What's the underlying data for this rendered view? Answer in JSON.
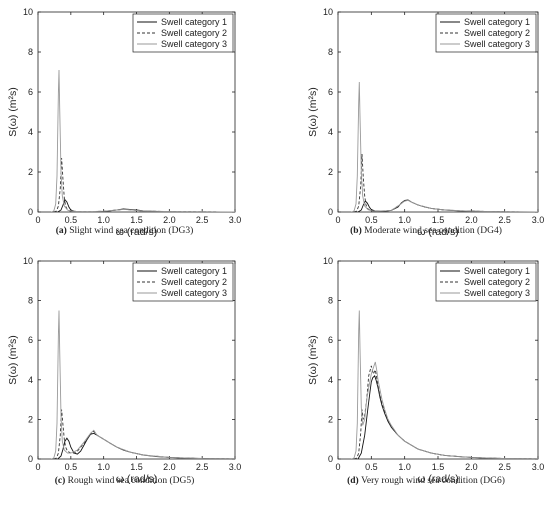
{
  "chart_data": [
    {
      "type": "line",
      "panel_letter": "(a)",
      "caption": "Slight wind sea condition (DG3)",
      "xlabel": "ω (rad/s)",
      "ylabel": "S(ω) (m²s)",
      "xlim": [
        0,
        3.0
      ],
      "ylim": [
        0,
        10
      ],
      "xticks": [
        "0",
        "0.5",
        "1.0",
        "1.5",
        "2.0",
        "2.5",
        "3.0"
      ],
      "yticks": [
        "0",
        "2",
        "4",
        "6",
        "8",
        "10"
      ],
      "grid": false,
      "legend_position": "top-right",
      "series": [
        {
          "name": "Swell category 1",
          "style": "solid",
          "color": "#111111",
          "x": [
            0.3,
            0.35,
            0.38,
            0.41,
            0.44,
            0.47,
            0.5,
            0.55,
            0.6,
            0.7,
            0.8,
            0.9,
            1.0,
            1.1,
            1.2,
            1.3,
            1.4,
            1.5,
            1.6,
            1.8,
            2.0,
            2.2,
            2.5,
            2.8,
            3.0
          ],
          "y": [
            0,
            0.1,
            0.35,
            0.62,
            0.5,
            0.25,
            0.1,
            0.04,
            0.02,
            0.01,
            0.01,
            0.02,
            0.03,
            0.06,
            0.1,
            0.15,
            0.13,
            0.1,
            0.06,
            0.03,
            0.02,
            0.01,
            0.01,
            0,
            0
          ]
        },
        {
          "name": "Swell category 2",
          "style": "dashed",
          "color": "#333333",
          "x": [
            0.24,
            0.28,
            0.31,
            0.34,
            0.36,
            0.38,
            0.4,
            0.42,
            0.45,
            0.5,
            0.6,
            0.8,
            1.0,
            1.2,
            1.3,
            1.4,
            1.6,
            2.0,
            2.5,
            3.0
          ],
          "y": [
            0,
            0.05,
            0.3,
            1.2,
            2.7,
            1.6,
            0.7,
            0.3,
            0.1,
            0.04,
            0.02,
            0.02,
            0.04,
            0.1,
            0.13,
            0.11,
            0.05,
            0.02,
            0.01,
            0
          ]
        },
        {
          "name": "Swell category 3",
          "style": "solid",
          "color": "#9a9a9a",
          "x": [
            0.2,
            0.24,
            0.27,
            0.29,
            0.31,
            0.32,
            0.33,
            0.35,
            0.37,
            0.4,
            0.45,
            0.5,
            0.6,
            0.8,
            1.0,
            1.2,
            1.3,
            1.4,
            1.6,
            2.0,
            2.5,
            3.0
          ],
          "y": [
            0,
            0.05,
            0.4,
            1.8,
            6.0,
            7.1,
            5.2,
            2.0,
            0.8,
            0.3,
            0.1,
            0.05,
            0.02,
            0.02,
            0.04,
            0.1,
            0.13,
            0.11,
            0.05,
            0.02,
            0.01,
            0
          ]
        }
      ]
    },
    {
      "type": "line",
      "panel_letter": "(b)",
      "caption": "Moderate wind sea condition (DG4)",
      "xlabel": "ω (rad/s)",
      "ylabel": "S(ω) (m²s)",
      "xlim": [
        0,
        3.0
      ],
      "ylim": [
        0,
        10
      ],
      "xticks": [
        "0",
        "0.5",
        "1.0",
        "1.5",
        "2.0",
        "2.5",
        "3.0"
      ],
      "yticks": [
        "0",
        "2",
        "4",
        "6",
        "8",
        "10"
      ],
      "grid": false,
      "legend_position": "top-right",
      "series": [
        {
          "name": "Swell category 1",
          "style": "solid",
          "color": "#111111",
          "x": [
            0.3,
            0.35,
            0.38,
            0.41,
            0.44,
            0.47,
            0.5,
            0.55,
            0.6,
            0.7,
            0.8,
            0.9,
            0.95,
            1.0,
            1.05,
            1.1,
            1.2,
            1.3,
            1.4,
            1.6,
            1.8,
            2.0,
            2.3,
            2.6,
            3.0
          ],
          "y": [
            0,
            0.1,
            0.35,
            0.55,
            0.45,
            0.25,
            0.12,
            0.06,
            0.04,
            0.04,
            0.08,
            0.25,
            0.45,
            0.58,
            0.6,
            0.5,
            0.35,
            0.25,
            0.18,
            0.1,
            0.06,
            0.04,
            0.02,
            0.01,
            0
          ]
        },
        {
          "name": "Swell category 2",
          "style": "dashed",
          "color": "#333333",
          "x": [
            0.24,
            0.28,
            0.31,
            0.34,
            0.36,
            0.38,
            0.4,
            0.42,
            0.45,
            0.5,
            0.6,
            0.8,
            0.9,
            1.0,
            1.05,
            1.1,
            1.2,
            1.4,
            1.6,
            2.0,
            2.5,
            3.0
          ],
          "y": [
            0,
            0.05,
            0.3,
            1.3,
            2.9,
            1.7,
            0.8,
            0.35,
            0.15,
            0.07,
            0.04,
            0.08,
            0.3,
            0.55,
            0.6,
            0.5,
            0.35,
            0.18,
            0.1,
            0.04,
            0.01,
            0
          ]
        },
        {
          "name": "Swell category 3",
          "style": "solid",
          "color": "#9a9a9a",
          "x": [
            0.2,
            0.24,
            0.27,
            0.29,
            0.31,
            0.32,
            0.33,
            0.35,
            0.37,
            0.4,
            0.45,
            0.5,
            0.6,
            0.8,
            0.9,
            1.0,
            1.05,
            1.1,
            1.2,
            1.4,
            1.6,
            2.0,
            2.5,
            3.0
          ],
          "y": [
            0,
            0.05,
            0.4,
            1.8,
            5.5,
            6.5,
            4.8,
            2.0,
            0.8,
            0.3,
            0.12,
            0.06,
            0.04,
            0.08,
            0.3,
            0.55,
            0.58,
            0.5,
            0.35,
            0.18,
            0.1,
            0.04,
            0.01,
            0
          ]
        }
      ]
    },
    {
      "type": "line",
      "panel_letter": "(c)",
      "caption": "Rough wind sea condition (DG5)",
      "xlabel": "ω (rad/s)",
      "ylabel": "S(ω) (m²s)",
      "xlim": [
        0,
        3.0
      ],
      "ylim": [
        0,
        10
      ],
      "xticks": [
        "0",
        "0.5",
        "1.0",
        "1.5",
        "2.0",
        "2.5",
        "3.0"
      ],
      "yticks": [
        "0",
        "2",
        "4",
        "6",
        "8",
        "10"
      ],
      "grid": false,
      "legend_position": "top-right",
      "series": [
        {
          "name": "Swell category 1",
          "style": "solid",
          "color": "#111111",
          "x": [
            0.3,
            0.35,
            0.38,
            0.41,
            0.44,
            0.47,
            0.5,
            0.55,
            0.6,
            0.65,
            0.7,
            0.75,
            0.8,
            0.85,
            0.9,
            0.95,
            1.0,
            1.1,
            1.2,
            1.3,
            1.4,
            1.6,
            1.8,
            2.0,
            2.3,
            2.6,
            3.0
          ],
          "y": [
            0,
            0.15,
            0.5,
            0.9,
            1.05,
            0.9,
            0.6,
            0.3,
            0.25,
            0.4,
            0.7,
            1.0,
            1.25,
            1.3,
            1.2,
            1.1,
            1.0,
            0.8,
            0.6,
            0.45,
            0.35,
            0.2,
            0.12,
            0.08,
            0.04,
            0.02,
            0.01
          ]
        },
        {
          "name": "Swell category 2",
          "style": "dashed",
          "color": "#333333",
          "x": [
            0.24,
            0.28,
            0.31,
            0.34,
            0.36,
            0.38,
            0.4,
            0.42,
            0.45,
            0.5,
            0.55,
            0.6,
            0.7,
            0.8,
            0.85,
            0.9,
            1.0,
            1.1,
            1.2,
            1.4,
            1.6,
            2.0,
            2.5,
            3.0
          ],
          "y": [
            0,
            0.05,
            0.3,
            1.2,
            2.5,
            1.7,
            1.0,
            0.6,
            0.4,
            0.3,
            0.3,
            0.4,
            0.8,
            1.25,
            1.4,
            1.2,
            1.0,
            0.8,
            0.6,
            0.35,
            0.2,
            0.08,
            0.02,
            0.01
          ]
        },
        {
          "name": "Swell category 3",
          "style": "solid",
          "color": "#9a9a9a",
          "x": [
            0.2,
            0.24,
            0.27,
            0.29,
            0.31,
            0.32,
            0.33,
            0.35,
            0.37,
            0.4,
            0.45,
            0.5,
            0.6,
            0.7,
            0.8,
            0.85,
            0.9,
            1.0,
            1.1,
            1.2,
            1.4,
            1.6,
            2.0,
            2.5,
            3.0
          ],
          "y": [
            0,
            0.05,
            0.4,
            1.8,
            6.3,
            7.5,
            5.5,
            2.2,
            0.9,
            0.45,
            0.3,
            0.3,
            0.45,
            0.85,
            1.3,
            1.45,
            1.2,
            1.0,
            0.8,
            0.6,
            0.35,
            0.2,
            0.08,
            0.02,
            0.01
          ]
        }
      ]
    },
    {
      "type": "line",
      "panel_letter": "(d)",
      "caption": "Very rough wind sea condition (DG6)",
      "xlabel": "ω (rad/s)",
      "ylabel": "S(ω) (m²s)",
      "xlim": [
        0,
        3.0
      ],
      "ylim": [
        0,
        10
      ],
      "xticks": [
        "0",
        "0.5",
        "1.0",
        "1.5",
        "2.0",
        "2.5",
        "3.0"
      ],
      "yticks": [
        "0",
        "2",
        "4",
        "6",
        "8",
        "10"
      ],
      "grid": false,
      "legend_position": "top-right",
      "series": [
        {
          "name": "Swell category 1",
          "style": "solid",
          "color": "#111111",
          "x": [
            0.3,
            0.35,
            0.4,
            0.45,
            0.48,
            0.5,
            0.52,
            0.55,
            0.57,
            0.6,
            0.63,
            0.66,
            0.7,
            0.75,
            0.8,
            0.9,
            1.0,
            1.1,
            1.2,
            1.4,
            1.6,
            1.8,
            2.0,
            2.3,
            2.6,
            3.0
          ],
          "y": [
            0,
            0.3,
            1.2,
            2.6,
            3.4,
            3.9,
            4.1,
            4.2,
            4.0,
            3.6,
            3.1,
            2.7,
            2.3,
            1.9,
            1.6,
            1.2,
            0.9,
            0.7,
            0.5,
            0.3,
            0.18,
            0.12,
            0.08,
            0.04,
            0.02,
            0.01
          ]
        },
        {
          "name": "Swell category 2",
          "style": "dashed",
          "color": "#333333",
          "x": [
            0.24,
            0.28,
            0.31,
            0.34,
            0.36,
            0.38,
            0.4,
            0.43,
            0.46,
            0.5,
            0.53,
            0.56,
            0.58,
            0.6,
            0.63,
            0.66,
            0.7,
            0.75,
            0.8,
            0.9,
            1.0,
            1.2,
            1.4,
            1.6,
            2.0,
            2.5,
            3.0
          ],
          "y": [
            0,
            0.05,
            0.3,
            1.3,
            2.5,
            2.0,
            2.2,
            3.0,
            4.2,
            4.7,
            4.3,
            4.5,
            4.1,
            3.7,
            3.2,
            2.8,
            2.4,
            2.0,
            1.6,
            1.2,
            0.9,
            0.5,
            0.3,
            0.18,
            0.08,
            0.02,
            0.01
          ]
        },
        {
          "name": "Swell category 3",
          "style": "solid",
          "color": "#9a9a9a",
          "x": [
            0.2,
            0.24,
            0.27,
            0.29,
            0.31,
            0.32,
            0.33,
            0.35,
            0.37,
            0.4,
            0.43,
            0.46,
            0.5,
            0.53,
            0.56,
            0.58,
            0.6,
            0.63,
            0.66,
            0.7,
            0.75,
            0.8,
            0.9,
            1.0,
            1.2,
            1.4,
            1.6,
            2.0,
            2.5,
            3.0
          ],
          "y": [
            0,
            0.05,
            0.4,
            1.8,
            6.5,
            7.5,
            5.6,
            2.6,
            1.7,
            2.0,
            3.0,
            3.6,
            4.3,
            4.6,
            4.9,
            4.5,
            4.0,
            3.5,
            3.0,
            2.5,
            2.0,
            1.7,
            1.2,
            0.9,
            0.5,
            0.3,
            0.18,
            0.08,
            0.02,
            0.01
          ]
        }
      ]
    }
  ]
}
